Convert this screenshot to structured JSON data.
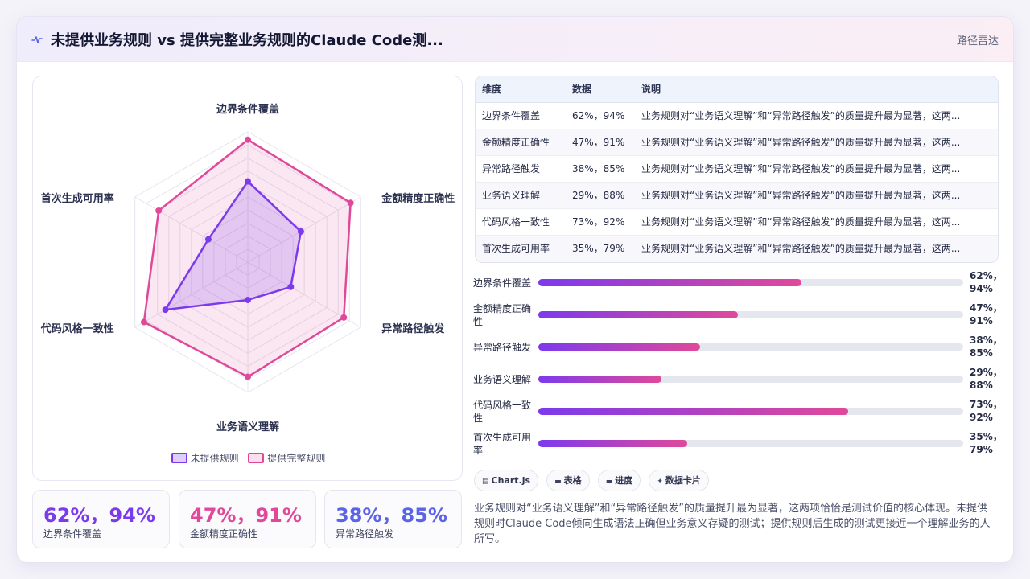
{
  "header": {
    "title": "未提供业务规则 vs 提供完整业务规则的Claude Code测...",
    "tag": "路径雷达"
  },
  "legend": [
    "未提供规则",
    "提供完整规则"
  ],
  "colors": {
    "series_a": "#7c3aed",
    "series_b": "#e0499a",
    "stat_1": "#7c3aed",
    "stat_2": "#e0499a",
    "stat_3": "#5b63e6"
  },
  "stats": [
    {
      "value": "62%，94%",
      "label": "边界条件覆盖"
    },
    {
      "value": "47%，91%",
      "label": "金额精度正确性"
    },
    {
      "value": "38%，85%",
      "label": "异常路径触发"
    }
  ],
  "table": {
    "headers": [
      "维度",
      "数据",
      "说明"
    ],
    "rows": [
      {
        "dim": "边界条件覆盖",
        "data": "62%，94%",
        "note": "业务规则对“业务语义理解”和“异常路径触发”的质量提升最为显著，这两..."
      },
      {
        "dim": "金额精度正确性",
        "data": "47%，91%",
        "note": "业务规则对“业务语义理解”和“异常路径触发”的质量提升最为显著，这两..."
      },
      {
        "dim": "异常路径触发",
        "data": "38%，85%",
        "note": "业务规则对“业务语义理解”和“异常路径触发”的质量提升最为显著，这两..."
      },
      {
        "dim": "业务语义理解",
        "data": "29%，88%",
        "note": "业务规则对“业务语义理解”和“异常路径触发”的质量提升最为显著，这两..."
      },
      {
        "dim": "代码风格一致性",
        "data": "73%，92%",
        "note": "业务规则对“业务语义理解”和“异常路径触发”的质量提升最为显著，这两..."
      },
      {
        "dim": "首次生成可用率",
        "data": "35%，79%",
        "note": "业务规则对“业务语义理解”和“异常路径触发”的质量提升最为显著，这两..."
      }
    ]
  },
  "progress": [
    {
      "label": "边界条件覆盖",
      "value_text": "62%，94%",
      "fraction": 0.62
    },
    {
      "label": "金额精度正确性",
      "value_text": "47%，91%",
      "fraction": 0.47
    },
    {
      "label": "异常路径触发",
      "value_text": "38%，85%",
      "fraction": 0.38
    },
    {
      "label": "业务语义理解",
      "value_text": "29%，88%",
      "fraction": 0.29
    },
    {
      "label": "代码风格一致性",
      "value_text": "73%，92%",
      "fraction": 0.73
    },
    {
      "label": "首次生成可用率",
      "value_text": "35%，79%",
      "fraction": 0.35
    }
  ],
  "chips": [
    {
      "icon": "chart-icon",
      "label": "Chart.js"
    },
    {
      "icon": "table-icon",
      "label": "表格"
    },
    {
      "icon": "progress-icon",
      "label": "进度"
    },
    {
      "icon": "sparkle-icon",
      "label": "数据卡片"
    }
  ],
  "summary": "业务规则对“业务语义理解”和“异常路径触发”的质量提升最为显著，这两项恰恰是测试价值的核心体现。未提供规则时Claude Code倾向生成语法正确但业务意义存疑的测试；提供规则后生成的测试更接近一个理解业务的人所写。",
  "chart_data": {
    "type": "radar",
    "categories": [
      "边界条件覆盖",
      "金额精度正确性",
      "异常路径触发",
      "业务语义理解",
      "代码风格一致性",
      "首次生成可用率"
    ],
    "series": [
      {
        "name": "未提供规则",
        "values": [
          62,
          47,
          38,
          29,
          73,
          35
        ]
      },
      {
        "name": "提供完整规则",
        "values": [
          94,
          91,
          85,
          88,
          92,
          79
        ]
      }
    ],
    "rlim": [
      0,
      100
    ],
    "grid": true,
    "legend": "bottom"
  }
}
